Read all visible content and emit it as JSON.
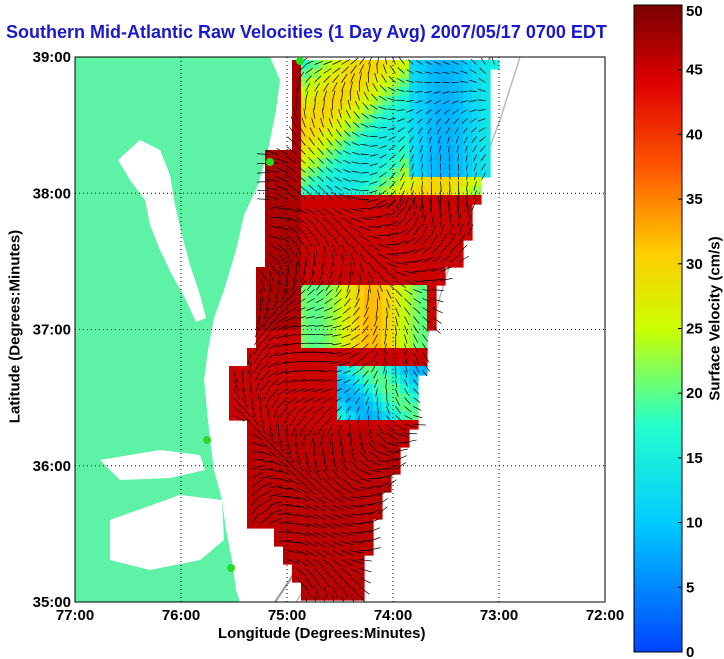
{
  "title": "Southern Mid-Atlantic Raw Velocities (1 Day Avg) 2007/05/17 0700 EDT",
  "map": {
    "xlabel": "Longitude (Degrees:Minutes)",
    "ylabel": "Latitude (Degrees:Minutes)",
    "x_ticks": [
      "77:00",
      "76:00",
      "75:00",
      "74:00",
      "73:00",
      "72:00"
    ],
    "y_ticks": [
      "39:00",
      "38:00",
      "37:00",
      "36:00",
      "35:00"
    ],
    "lon_range": [
      -77,
      -72
    ],
    "lat_range": [
      35,
      39
    ],
    "grid": "dotted",
    "land_color": "#5ef2a6",
    "water_color": "#ffffff",
    "station_marker_color": "#22dd22"
  },
  "colorbar": {
    "label": "Surface Velocity (cm/s)",
    "ticks": [
      "0",
      "5",
      "10",
      "15",
      "20",
      "25",
      "30",
      "35",
      "40",
      "45",
      "50"
    ],
    "range": [
      0,
      50
    ],
    "colormap": "jet"
  }
}
